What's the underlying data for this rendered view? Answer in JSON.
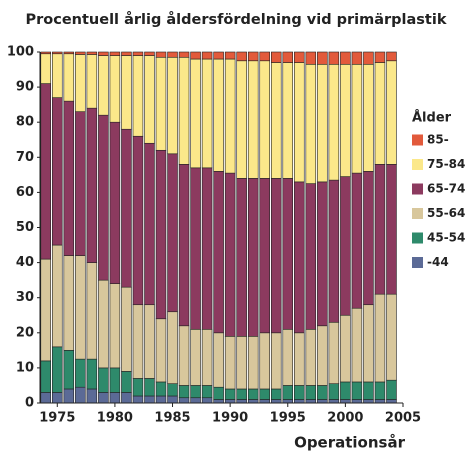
{
  "chart_data": {
    "type": "stacked_bar",
    "title": "Procentuell årlig åldersfördelning vid primärplastik",
    "x_label": "Operationsår",
    "legend_title": "Ålder",
    "x": [
      1974,
      1975,
      1976,
      1977,
      1978,
      1979,
      1980,
      1981,
      1982,
      1983,
      1984,
      1985,
      1986,
      1987,
      1988,
      1989,
      1990,
      1991,
      1992,
      1993,
      1994,
      1995,
      1996,
      1997,
      1998,
      1999,
      2000,
      2001,
      2002,
      2003,
      2004
    ],
    "xlim": [
      1973.5,
      2005
    ],
    "xticks": [
      1975,
      1980,
      1985,
      1990,
      1995,
      2000,
      2005
    ],
    "ylim": [
      0,
      100
    ],
    "yticks": [
      0,
      10,
      20,
      30,
      40,
      50,
      60,
      70,
      80,
      90,
      100
    ],
    "series": [
      {
        "name": "-44",
        "color": "#5b6a96",
        "values": [
          3,
          3,
          4,
          4.5,
          4,
          3,
          3,
          3,
          2,
          2,
          2,
          2,
          1.5,
          1.5,
          1.5,
          1,
          1,
          1,
          1,
          1,
          1,
          1,
          1,
          1,
          1,
          1,
          1,
          1,
          1,
          1,
          1
        ]
      },
      {
        "name": "45-54",
        "color": "#2e8a6b",
        "values": [
          9,
          13,
          11,
          8,
          8.5,
          7,
          7,
          6,
          5,
          5,
          4,
          3.5,
          3.5,
          3.5,
          3.5,
          3.5,
          3,
          3,
          3,
          3,
          3,
          4,
          4,
          4,
          4,
          4.5,
          5,
          5,
          5,
          5,
          5.5
        ]
      },
      {
        "name": "55-64",
        "color": "#d8c79c",
        "values": [
          29,
          29,
          27,
          29.5,
          27.5,
          25,
          24,
          24,
          21,
          21,
          18,
          20.5,
          17,
          16,
          16,
          15.5,
          15,
          15,
          15,
          16,
          16,
          16,
          15,
          16,
          17,
          17.5,
          19,
          21,
          22,
          25,
          24.5
        ]
      },
      {
        "name": "65-74",
        "color": "#8c3a5f",
        "values": [
          50,
          42,
          44,
          41,
          44,
          47,
          46,
          45,
          48,
          46,
          48,
          45,
          46,
          46,
          46,
          46,
          46.5,
          45,
          45,
          44,
          44,
          43,
          43,
          41.5,
          41,
          40.5,
          39.5,
          38.5,
          38,
          37,
          37
        ]
      },
      {
        "name": "75-84",
        "color": "#fbe88a",
        "values": [
          8.5,
          12.5,
          13.5,
          16.3,
          15.3,
          17,
          19,
          21,
          23,
          25,
          26.5,
          27.5,
          30.5,
          31,
          31,
          32,
          32.5,
          33.5,
          33.5,
          33.5,
          33,
          33,
          34,
          34,
          33.5,
          33,
          32,
          31,
          30.5,
          29,
          29.5
        ]
      },
      {
        "name": "85-",
        "color": "#e25a3b",
        "values": [
          0.5,
          0.5,
          0.5,
          0.7,
          0.7,
          1,
          1,
          1,
          1,
          1,
          1.5,
          1.5,
          1.5,
          2,
          2,
          2,
          2,
          2.5,
          2.5,
          2.5,
          3,
          3,
          3,
          3.5,
          3.5,
          3.5,
          3.5,
          3.5,
          3.5,
          3,
          2.5
        ]
      }
    ]
  }
}
